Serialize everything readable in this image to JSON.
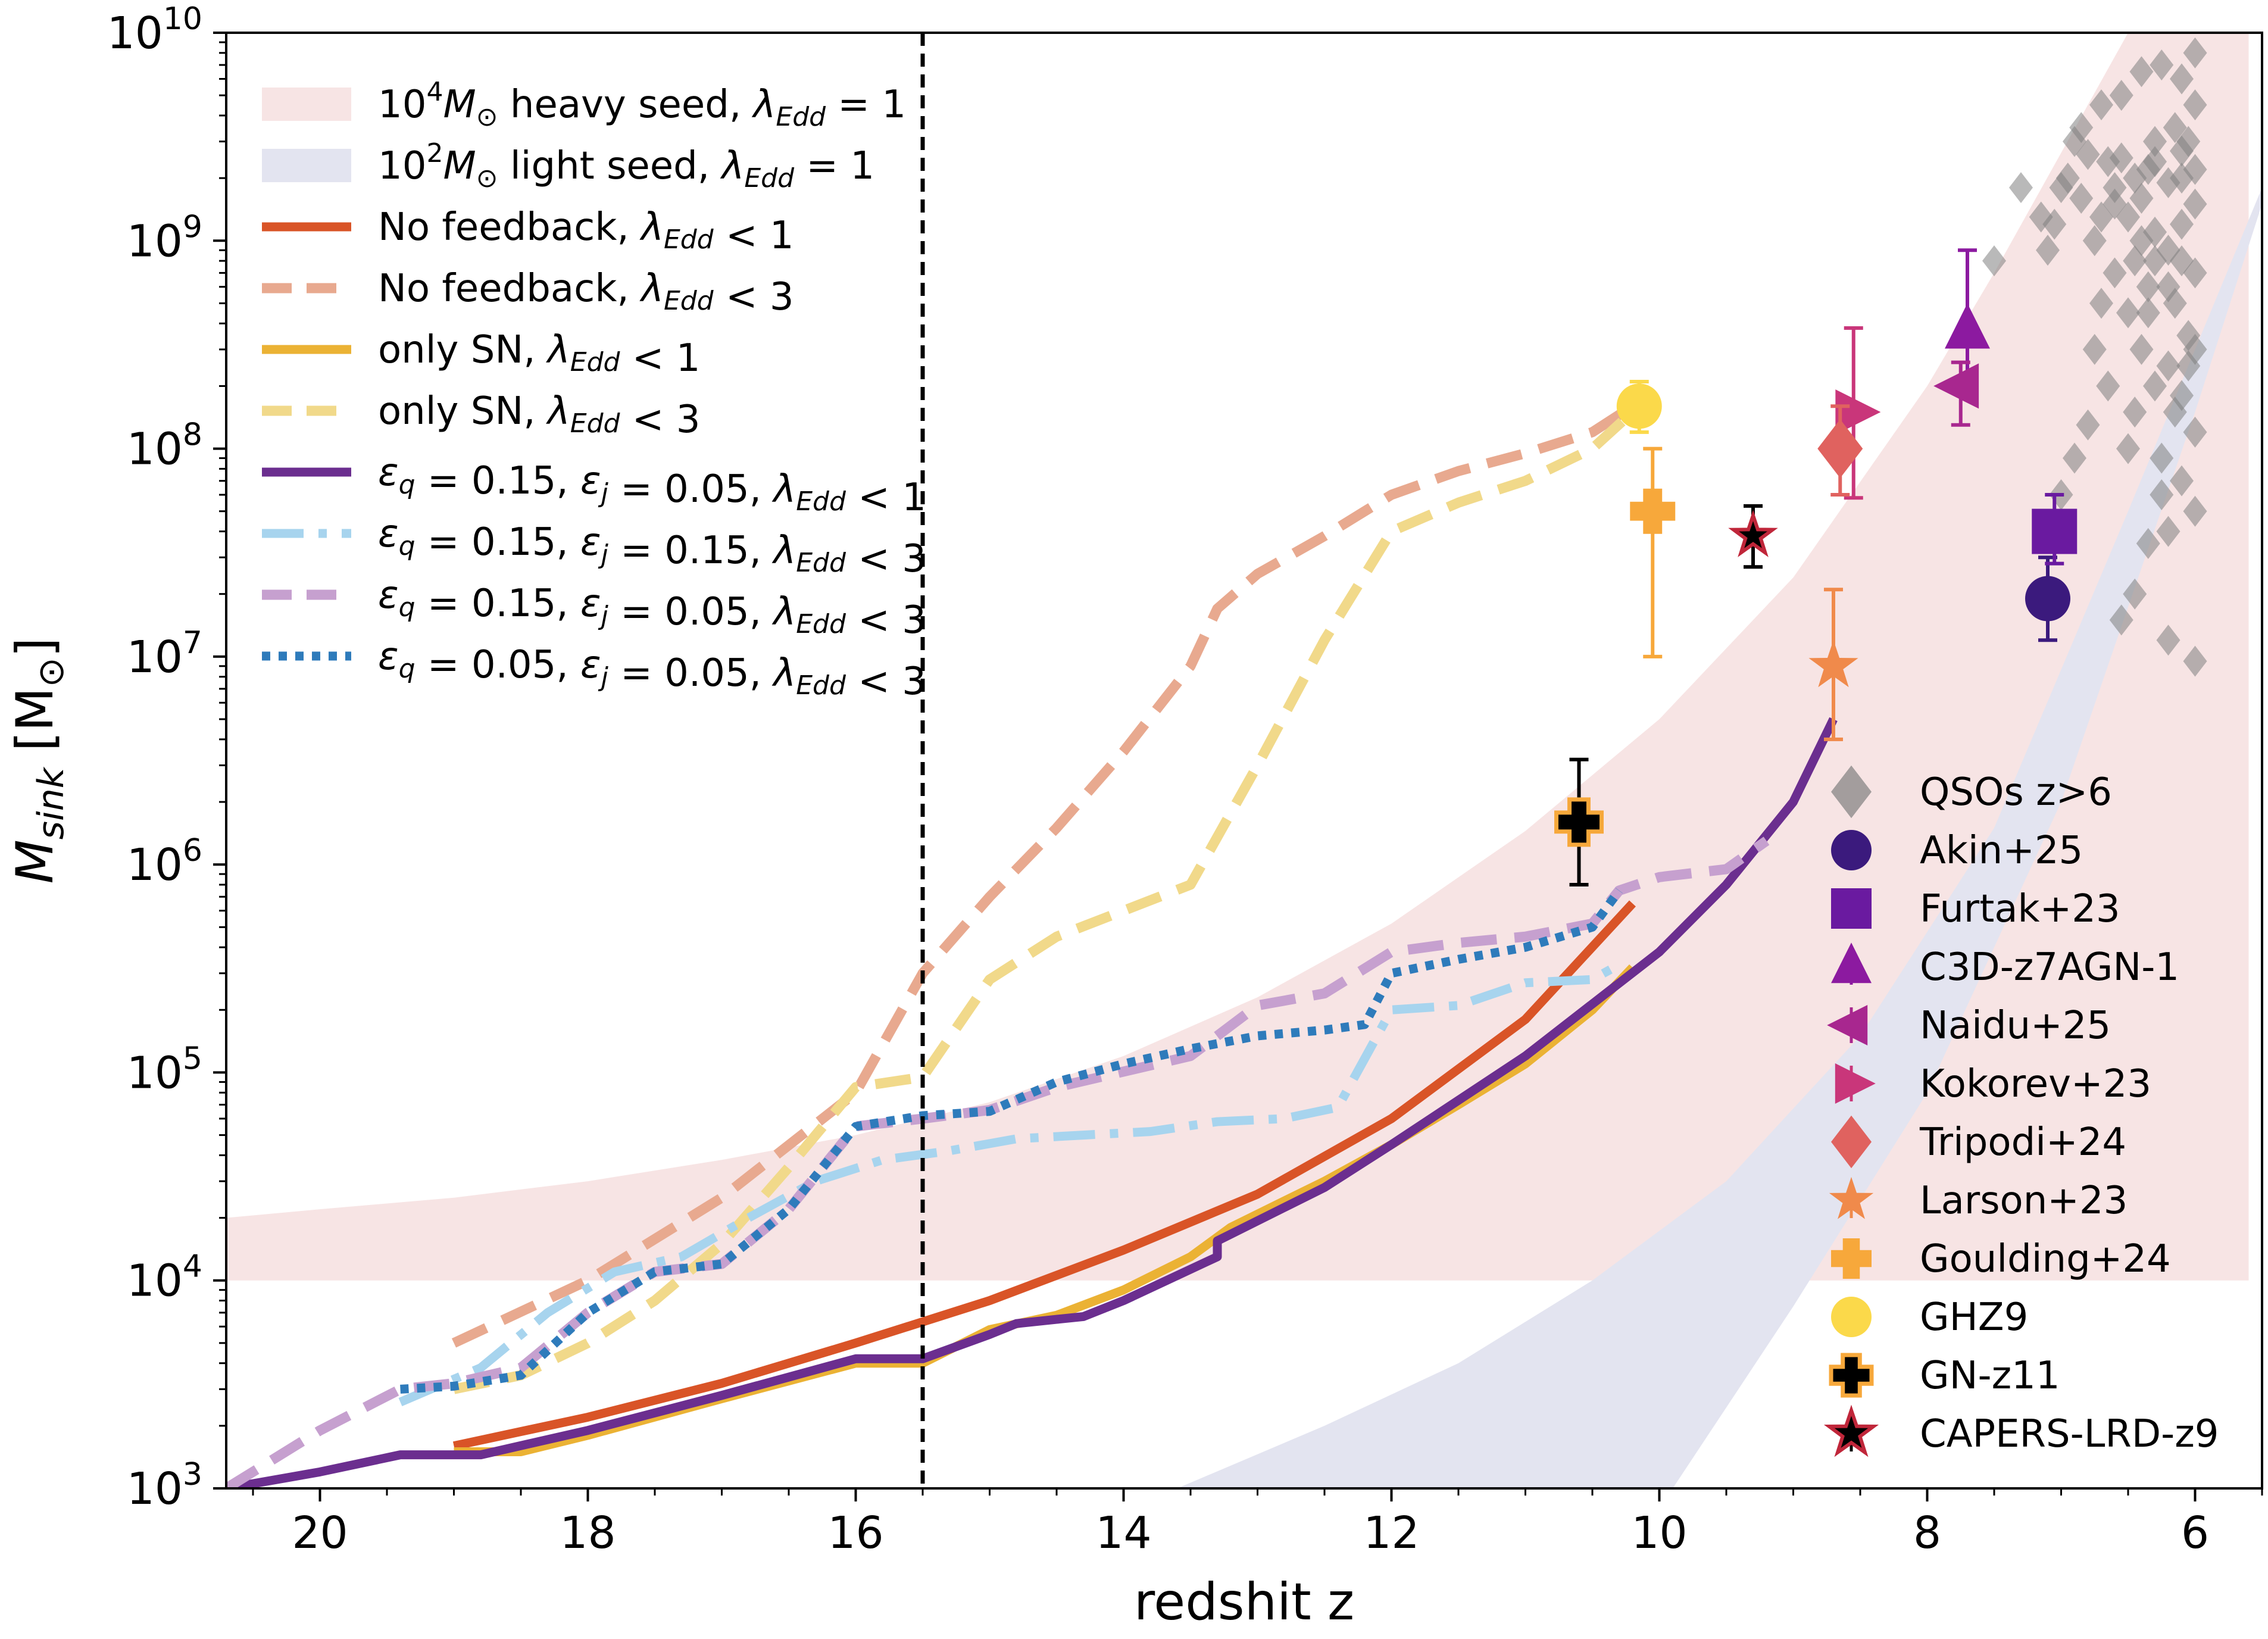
{
  "chart_data": {
    "type": "line",
    "xlabel": "redshit z",
    "ylabel": "M_sink [M_⊙]",
    "ylabel_main": "M",
    "ylabel_sub": "sink",
    "ylabel_unit_open": " [M",
    "ylabel_unit_sub": "⊙",
    "ylabel_unit_close": "]",
    "xlim": [
      20.7,
      5.5
    ],
    "x_inverted": true,
    "ylim": [
      1000,
      10000000000
    ],
    "yscale": "log",
    "xticks": [
      20,
      18,
      16,
      14,
      12,
      10,
      8,
      6
    ],
    "xtick_labels": [
      "20",
      "18",
      "16",
      "14",
      "12",
      "10",
      "8",
      "6"
    ],
    "yticks": [
      {
        "value": 1000,
        "base": "10",
        "exp": "3"
      },
      {
        "value": 10000,
        "base": "10",
        "exp": "4"
      },
      {
        "value": 100000,
        "base": "10",
        "exp": "5"
      },
      {
        "value": 1000000,
        "base": "10",
        "exp": "6"
      },
      {
        "value": 10000000,
        "base": "10",
        "exp": "7"
      },
      {
        "value": 100000000,
        "base": "10",
        "exp": "8"
      },
      {
        "value": 1000000000,
        "base": "10",
        "exp": "9"
      },
      {
        "value": 10000000000,
        "base": "10",
        "exp": "10"
      }
    ],
    "vline_z": 15.5,
    "legend_placement": "upper-left and lower-right",
    "bands": [
      {
        "name": "10^4 M⊙ heavy seed, λEdd = 1",
        "color": "#f7e4e4",
        "z": [
          20.7,
          20,
          19,
          18,
          17,
          16,
          15,
          14,
          13,
          12,
          11,
          10,
          9,
          8,
          7.5,
          6.5,
          5.6
        ],
        "lower": [
          10000,
          10000,
          10000,
          10000,
          10000,
          10000,
          10000,
          10000,
          10000,
          10000,
          10000,
          10000,
          10000,
          10000,
          10000,
          10000,
          10000
        ],
        "upper": [
          20000,
          22000,
          25000,
          30000,
          38000,
          50000,
          72000,
          120000,
          230000,
          520000,
          1450000,
          5000000,
          24000000,
          200000000,
          700000000,
          10000000000,
          10000000000
        ]
      },
      {
        "name": "10^2 M⊙ light seed, λEdd = 1",
        "color": "#e3e4f0",
        "z": [
          13.6,
          12.5,
          11.5,
          10.5,
          9.5,
          8.5,
          7.5,
          6.5,
          5.5
        ],
        "lower": [
          1000,
          2000,
          4000,
          10000,
          30000,
          150000,
          1500000,
          50000000,
          1800000000
        ],
        "upper": [
          null,
          null,
          null,
          null,
          null,
          null,
          null,
          null,
          null
        ],
        "z_upper": [
          9.9,
          9,
          8,
          7,
          6,
          5.5
        ],
        "upper_vals": [
          1000,
          7500,
          80000,
          2000000,
          150000000,
          1500000000
        ]
      }
    ],
    "series": [
      {
        "name": "No feedback, λEdd < 1",
        "color": "#d95427",
        "dash": "solid",
        "width": 15,
        "z": [
          19,
          18,
          17,
          16,
          15,
          14,
          13,
          12,
          11,
          10.2
        ],
        "y": [
          1600,
          2200,
          3200,
          5000,
          8000,
          14000,
          26000,
          60000,
          180000,
          650000
        ]
      },
      {
        "name": "No feedback, λEdd < 3",
        "color": "#e8a98f",
        "dash": "dashed",
        "width": 17,
        "z": [
          19,
          18,
          17,
          16,
          15.5,
          15,
          14.5,
          14,
          13.5,
          13.3,
          13,
          12.5,
          12,
          11.5,
          11,
          10.5,
          10.2
        ],
        "y": [
          5000,
          10000,
          25000,
          80000,
          300000,
          700000,
          1500000,
          3500000,
          9000000,
          17000000,
          25000000,
          38000000,
          60000000,
          78000000,
          95000000,
          120000000,
          160000000
        ]
      },
      {
        "name": "only SN, λEdd < 1",
        "color": "#ebb234",
        "dash": "solid",
        "width": 15,
        "z": [
          19,
          18.5,
          18,
          17,
          16,
          15.5,
          15,
          14.5,
          14,
          13.5,
          13.2,
          12.5,
          12,
          11.5,
          11,
          10.5,
          10.2
        ],
        "y": [
          1500,
          1500,
          1800,
          2700,
          4000,
          4000,
          5800,
          6800,
          9000,
          13000,
          18000,
          30000,
          45000,
          70000,
          110000,
          200000,
          320000
        ]
      },
      {
        "name": "only SN, λEdd < 3",
        "color": "#f1d98a",
        "dash": "dashed",
        "width": 17,
        "z": [
          19,
          18.5,
          18,
          17.5,
          17,
          16.5,
          16,
          15.5,
          15,
          14.5,
          14,
          13.5,
          13,
          12.5,
          12,
          11.5,
          11,
          10.5,
          10.2
        ],
        "y": [
          3000,
          3500,
          5000,
          8000,
          15000,
          35000,
          85000,
          95000,
          280000,
          450000,
          600000,
          800000,
          3000000,
          12000000,
          40000000,
          55000000,
          70000000,
          100000000,
          150000000
        ]
      },
      {
        "name": "εq = 0.15, εj = 0.05, λEdd < 1",
        "color": "#6b2e8f",
        "dash": "solid",
        "width": 15,
        "z": [
          20.7,
          20,
          19.4,
          18.8,
          18,
          17,
          16,
          15.5,
          15,
          14.8,
          14.5,
          14.3,
          14,
          13.3,
          13.3,
          12.5,
          12,
          11,
          10,
          9.5,
          9,
          8.7
        ],
        "y": [
          1000,
          1200,
          1450,
          1450,
          1900,
          2800,
          4200,
          4200,
          5500,
          6200,
          6500,
          6700,
          8000,
          13000,
          15500,
          28000,
          45000,
          120000,
          380000,
          800000,
          2000000,
          5000000
        ]
      },
      {
        "name": "εq = 0.15, εj = 0.15, λEdd < 3",
        "color": "#a7d4ee",
        "dash": "dashdot",
        "width": 15,
        "z": [
          19.4,
          18.8,
          18.3,
          17.8,
          17.3,
          16.8,
          16.3,
          15.8,
          15.3,
          14.8,
          14.3,
          13.8,
          13.3,
          12.8,
          12.4,
          12.0,
          11.5,
          11.0,
          10.5,
          10.3
        ],
        "y": [
          2600,
          3800,
          7000,
          11000,
          13000,
          20000,
          30000,
          38000,
          42000,
          48000,
          50000,
          52000,
          58000,
          60000,
          68000,
          200000,
          210000,
          270000,
          280000,
          330000
        ]
      },
      {
        "name": "εq = 0.15, εj = 0.05, λEdd < 3",
        "color": "#c6a0cf",
        "dash": "dashed",
        "width": 17,
        "z": [
          20.7,
          20,
          19.4,
          19,
          18.5,
          18,
          17.5,
          17,
          16.5,
          16,
          15.5,
          15,
          14.5,
          13.5,
          13,
          12.5,
          12,
          11.5,
          11,
          10.5,
          10.3,
          10,
          9.5,
          9.2
        ],
        "y": [
          1000,
          1900,
          3000,
          3200,
          3800,
          7000,
          11000,
          12000,
          22000,
          55000,
          60000,
          66000,
          85000,
          120000,
          210000,
          240000,
          380000,
          420000,
          450000,
          520000,
          750000,
          870000,
          950000,
          1300000
        ]
      },
      {
        "name": "εq = 0.05, εj = 0.05, λEdd < 3",
        "color": "#2e7bbb",
        "dash": "dotted",
        "width": 15,
        "z": [
          19.4,
          19,
          18.5,
          18,
          17.5,
          17,
          16.5,
          16,
          15.5,
          15,
          14.5,
          14,
          13.5,
          13,
          12.5,
          12.2,
          12,
          11.5,
          11,
          10.5,
          10.3
        ],
        "y": [
          3000,
          3100,
          3500,
          7000,
          11000,
          12000,
          22000,
          55000,
          62000,
          65000,
          90000,
          110000,
          130000,
          150000,
          160000,
          170000,
          300000,
          350000,
          400000,
          500000,
          750000
        ]
      }
    ],
    "legend_lines": [
      {
        "base": "10",
        "exp": "4",
        "label": " heavy seed, ",
        "lambda": "λ",
        "sub": "Edd",
        "rest": " = 1",
        "kind": "band",
        "color": "#f7e4e4"
      },
      {
        "base": "10",
        "exp": "2",
        "label": " light seed, ",
        "lambda": "λ",
        "sub": "Edd",
        "rest": " = 1",
        "kind": "band",
        "color": "#e3e4f0"
      }
    ],
    "legend_text": [
      "No feedback, λEdd < 1",
      "No feedback, λEdd < 3",
      "only SN, λEdd < 1",
      "only SN, λEdd < 3",
      "εq = 0.15, εj = 0.05, λEdd < 1",
      "εq = 0.15, εj = 0.15, λEdd < 3",
      "εq = 0.15, εj = 0.05, λEdd < 3",
      "εq = 0.05, εj = 0.05, λEdd < 3"
    ],
    "observations": [
      {
        "name": "QSOs z>6",
        "marker": "diamond",
        "color": "#7f7f7f"
      },
      {
        "name": "Akin+25",
        "marker": "circle",
        "color": "#3b1a7d",
        "z": 7.1,
        "y": 19000000,
        "err_lo": 12000000,
        "err_hi": 30000000
      },
      {
        "name": "Furtak+23",
        "marker": "square",
        "color": "#6a1aa0",
        "z": 7.05,
        "y": 40000000,
        "err_lo": 28000000,
        "err_hi": 60000000
      },
      {
        "name": "C3D-z7AGN-1",
        "marker": "triangle-up",
        "color": "#8c1aa0",
        "z": 7.7,
        "y": 370000000,
        "err_lo": 200000000,
        "err_hi": 900000000
      },
      {
        "name": "Naidu+25",
        "marker": "triangle-left",
        "color": "#a8278f",
        "z": 7.75,
        "y": 200000000,
        "err_lo": 130000000,
        "err_hi": 260000000
      },
      {
        "name": "Kokorev+23",
        "marker": "triangle-right",
        "color": "#c9367a",
        "z": 8.55,
        "y": 150000000,
        "err_lo": 58000000,
        "err_hi": 380000000
      },
      {
        "name": "Tripodi+24",
        "marker": "diamond",
        "color": "#e0625f",
        "z": 8.65,
        "y": 100000000,
        "err_lo": 60000000,
        "err_hi": 160000000
      },
      {
        "name": "Larson+23",
        "marker": "star",
        "color": "#f08a4b",
        "z": 8.7,
        "y": 9000000,
        "err_lo": 4000000,
        "err_hi": 21000000
      },
      {
        "name": "Goulding+24",
        "marker": "plus",
        "color": "#f7a83b",
        "z": 10.05,
        "y": 50000000,
        "err_lo": 10000000,
        "err_hi": 100000000
      },
      {
        "name": "GHZ9",
        "marker": "circle",
        "color": "#fbd94a",
        "z": 10.15,
        "y": 160000000,
        "err_lo": 120000000,
        "err_hi": 210000000
      },
      {
        "name": "GN-z11",
        "marker": "plus-black",
        "color": "#000000",
        "edge": "#f7a83b",
        "z": 10.6,
        "y": 1600000,
        "err_lo": 800000,
        "err_hi": 3200000
      },
      {
        "name": "CAPERS-LRD-z9",
        "marker": "star-black",
        "color": "#000000",
        "edge": "#c0263a",
        "z": 9.3,
        "y": 38000000,
        "err_lo": 27000000,
        "err_hi": 53000000
      }
    ],
    "qsos": [
      [
        6.0,
        4500000000
      ],
      [
        6.05,
        3000000000
      ],
      [
        6.1,
        2000000000
      ],
      [
        6.0,
        1500000000
      ],
      [
        6.1,
        1200000000
      ],
      [
        6.2,
        900000000
      ],
      [
        6.0,
        700000000
      ],
      [
        6.15,
        500000000
      ],
      [
        6.05,
        350000000
      ],
      [
        6.2,
        250000000
      ],
      [
        6.1,
        180000000
      ],
      [
        6.0,
        120000000
      ],
      [
        6.25,
        90000000
      ],
      [
        6.1,
        70000000
      ],
      [
        6.0,
        50000000
      ],
      [
        6.2,
        40000000
      ],
      [
        6.3,
        3000000000
      ],
      [
        6.35,
        2200000000
      ],
      [
        6.4,
        1600000000
      ],
      [
        6.3,
        1100000000
      ],
      [
        6.45,
        800000000
      ],
      [
        6.35,
        600000000
      ],
      [
        6.5,
        450000000
      ],
      [
        6.4,
        300000000
      ],
      [
        6.3,
        200000000
      ],
      [
        6.45,
        150000000
      ],
      [
        6.5,
        100000000
      ],
      [
        6.55,
        2500000000
      ],
      [
        6.6,
        1800000000
      ],
      [
        6.7,
        1300000000
      ],
      [
        6.75,
        1000000000
      ],
      [
        6.8,
        2600000000
      ],
      [
        6.85,
        1600000000
      ],
      [
        6.9,
        3000000000
      ],
      [
        7.0,
        1800000000
      ],
      [
        6.55,
        5000000000
      ],
      [
        6.4,
        6500000000
      ],
      [
        6.25,
        7000000000
      ],
      [
        6.1,
        6000000000
      ],
      [
        6.0,
        8000000000
      ],
      [
        6.15,
        3500000000
      ],
      [
        6.6,
        700000000
      ],
      [
        6.7,
        500000000
      ],
      [
        6.75,
        300000000
      ],
      [
        6.65,
        200000000
      ],
      [
        6.8,
        130000000
      ],
      [
        6.9,
        90000000
      ],
      [
        7.0,
        60000000
      ],
      [
        6.05,
        250000000
      ],
      [
        6.15,
        150000000
      ],
      [
        6.25,
        60000000
      ],
      [
        6.35,
        35000000
      ],
      [
        6.45,
        20000000
      ],
      [
        6.55,
        15000000
      ],
      [
        6.2,
        12000000
      ],
      [
        6.0,
        9500000
      ],
      [
        6.3,
        2400000000
      ],
      [
        6.2,
        1900000000
      ],
      [
        6.1,
        2700000000
      ],
      [
        6.0,
        2200000000
      ],
      [
        6.3,
        800000000
      ],
      [
        6.4,
        1000000000
      ],
      [
        6.5,
        1300000000
      ],
      [
        6.6,
        1500000000
      ],
      [
        6.1,
        800000000
      ],
      [
        6.2,
        600000000
      ],
      [
        6.0,
        300000000
      ],
      [
        6.35,
        450000000
      ],
      [
        6.45,
        2000000000
      ],
      [
        6.65,
        2400000000
      ],
      [
        7.1,
        900000000
      ],
      [
        7.15,
        1300000000
      ],
      [
        7.05,
        1200000000
      ],
      [
        7.3,
        1800000000
      ],
      [
        7.5,
        800000000
      ],
      [
        6.95,
        2000000000
      ],
      [
        6.85,
        3500000000
      ],
      [
        6.7,
        4500000000
      ]
    ]
  }
}
